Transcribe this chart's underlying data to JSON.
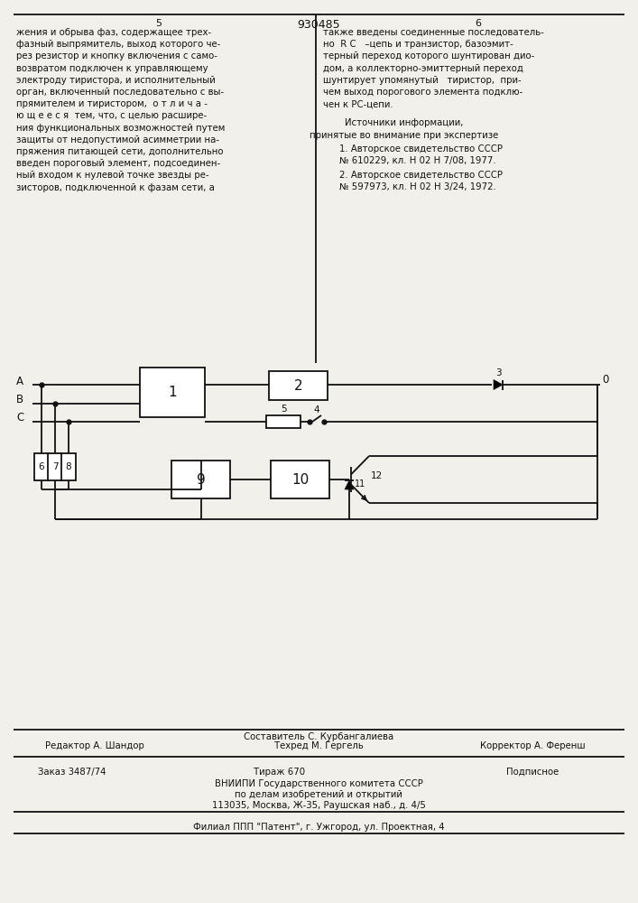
{
  "page_number_left": "5",
  "page_number_center": "930485",
  "page_number_right": "6",
  "text_left_lines": [
    "жения и обрыва фаз, содержащее трех-",
    "фазный выпрямитель, выход которого че-",
    "рез резистор и кнопку включения с само-",
    "возвратом подключен к управляющему",
    "электроду тиристора, и исполнительный",
    "орган, включенный последовательно с вы-",
    "прямителем и тиристором,  о т л и ч а -",
    "ю щ е е с я  тем, что, с целью расшире-",
    "ния функциональных возможностей путем",
    "защиты от недопустимой асимметрии на-",
    "пряжения питающей сети, дополнительно",
    "введен пороговый элемент, подсоединен-",
    "ный входом к нулевой точке звезды ре-",
    "зисторов, подключенной к фазам сети, а"
  ],
  "text_right_lines": [
    "также введены соединенные последователь-",
    "но  R C   –цепь и транзистор, базоэмит-",
    "терный переход которого шунтирован дио-",
    "дом, а коллекторно-эмиттерный переход",
    "шунтирует упомянутый   тиристор,  при-",
    "чем выход порогового элемента подклю-",
    "чен к РС-цепи."
  ],
  "sources_title": "Источники информации,",
  "sources_subtitle": "принятые во внимание при экспертизе",
  "source1_lines": [
    "1. Авторское свидетельство СССР",
    "№ 610229, кл. Н 02 Н 7/08, 1977."
  ],
  "source2_lines": [
    "2. Авторское свидетельство СССР",
    "№ 597973, кл. Н 02 Н 3/24, 1972."
  ],
  "footer_col1_top": "Редактор А. Шандор",
  "footer_col2_top": "Составитель С. Курбангалиева",
  "footer_col2_bot": "Техред М. Гергель",
  "footer_col3_top": "Корректор А. Ференш",
  "footer2_col1": "Заказ 3487/74",
  "footer2_col2": "Тираж 670",
  "footer2_col3": "Подписное",
  "footer3": "ВНИИПИ Государственного комитета СССР",
  "footer4": "по делам изобретений и открытий",
  "footer5": "113035, Москва, Ж-35, Раушская наб., д. 4/5",
  "footer6": "Филиал ППП \"Патент\", г. Ужгород, ул. Проектная, 4",
  "bg_color": "#f2f0eb",
  "line_color": "#111111",
  "text_color": "#111111"
}
